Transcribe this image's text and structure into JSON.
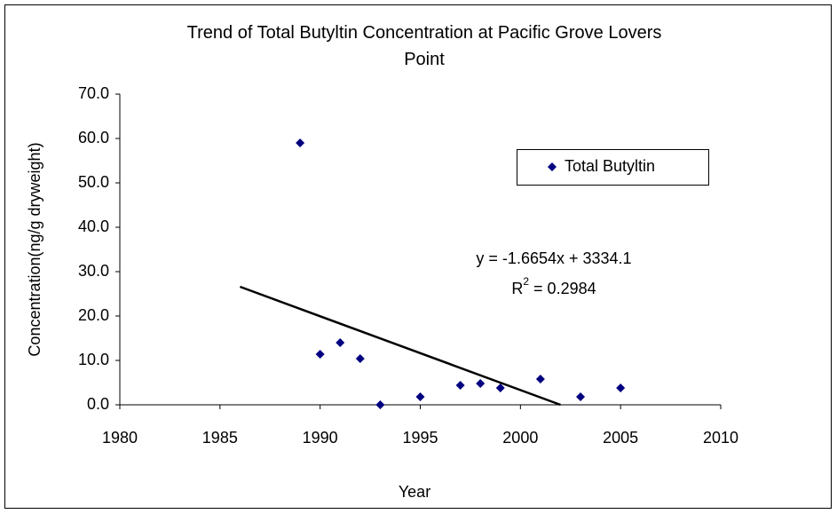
{
  "chart_data": {
    "type": "scatter",
    "title": "Trend of Total Butyltin Concentration at Pacific Grove Lovers Point",
    "x_label": "Year",
    "y_label": "Concentration(ng/g dryweight)",
    "x": [
      1989,
      1990,
      1991,
      1992,
      1993,
      1995,
      1997,
      1998,
      1999,
      2001,
      2003,
      2005
    ],
    "series": [
      {
        "name": "Total Butyltin",
        "color": "#000080",
        "values": [
          59.0,
          11.4,
          14.0,
          10.4,
          0.0,
          1.8,
          4.4,
          4.8,
          3.8,
          5.8,
          1.8,
          3.8
        ]
      }
    ],
    "trendline": {
      "x": [
        1986,
        2002
      ],
      "y": [
        26.6,
        0
      ],
      "color": "#000000",
      "equation": "y = -1.6654x + 3334.1",
      "r2": {
        "base": "R",
        "sup": "2",
        "rest": " = 0.2984"
      }
    },
    "xlim": [
      1980,
      2010
    ],
    "xticks": [
      1980,
      1985,
      1990,
      1995,
      2000,
      2005,
      2010
    ],
    "ylim": [
      0,
      70
    ],
    "yticks": [
      {
        "value": 0,
        "label": "0.0"
      },
      {
        "value": 10,
        "label": "10.0"
      },
      {
        "value": 20,
        "label": "20.0"
      },
      {
        "value": 30,
        "label": "30.0"
      },
      {
        "value": 40,
        "label": "40.0"
      },
      {
        "value": 50,
        "label": "50.0"
      },
      {
        "value": 60,
        "label": "60.0"
      },
      {
        "value": 70,
        "label": "70.0"
      }
    ],
    "grid": false,
    "legend": "upper right"
  }
}
